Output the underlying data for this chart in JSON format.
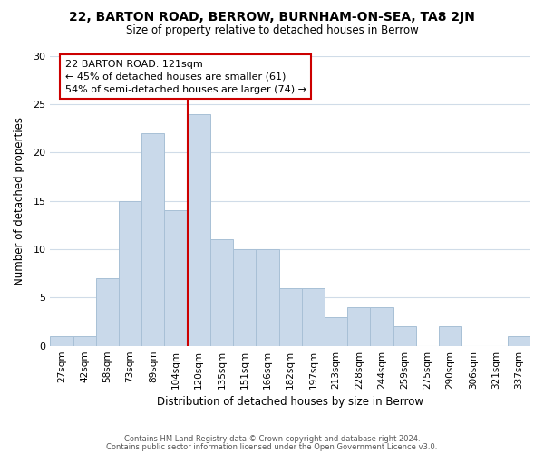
{
  "title": "22, BARTON ROAD, BERROW, BURNHAM-ON-SEA, TA8 2JN",
  "subtitle": "Size of property relative to detached houses in Berrow",
  "xlabel": "Distribution of detached houses by size in Berrow",
  "ylabel": "Number of detached properties",
  "bar_labels": [
    "27sqm",
    "42sqm",
    "58sqm",
    "73sqm",
    "89sqm",
    "104sqm",
    "120sqm",
    "135sqm",
    "151sqm",
    "166sqm",
    "182sqm",
    "197sqm",
    "213sqm",
    "228sqm",
    "244sqm",
    "259sqm",
    "275sqm",
    "290sqm",
    "306sqm",
    "321sqm",
    "337sqm"
  ],
  "bar_values": [
    1,
    1,
    7,
    15,
    22,
    14,
    24,
    11,
    10,
    10,
    6,
    6,
    3,
    4,
    4,
    2,
    0,
    2,
    0,
    0,
    1
  ],
  "bar_color": "#c9d9ea",
  "bar_edge_color": "#a8c0d6",
  "vline_index": 6,
  "vline_color": "#cc0000",
  "annotation_title": "22 BARTON ROAD: 121sqm",
  "annotation_line1": "← 45% of detached houses are smaller (61)",
  "annotation_line2": "54% of semi-detached houses are larger (74) →",
  "ylim": [
    0,
    30
  ],
  "yticks": [
    0,
    5,
    10,
    15,
    20,
    25,
    30
  ],
  "footer1": "Contains HM Land Registry data © Crown copyright and database right 2024.",
  "footer2": "Contains public sector information licensed under the Open Government Licence v3.0.",
  "background_color": "#ffffff",
  "grid_color": "#d0dce8"
}
